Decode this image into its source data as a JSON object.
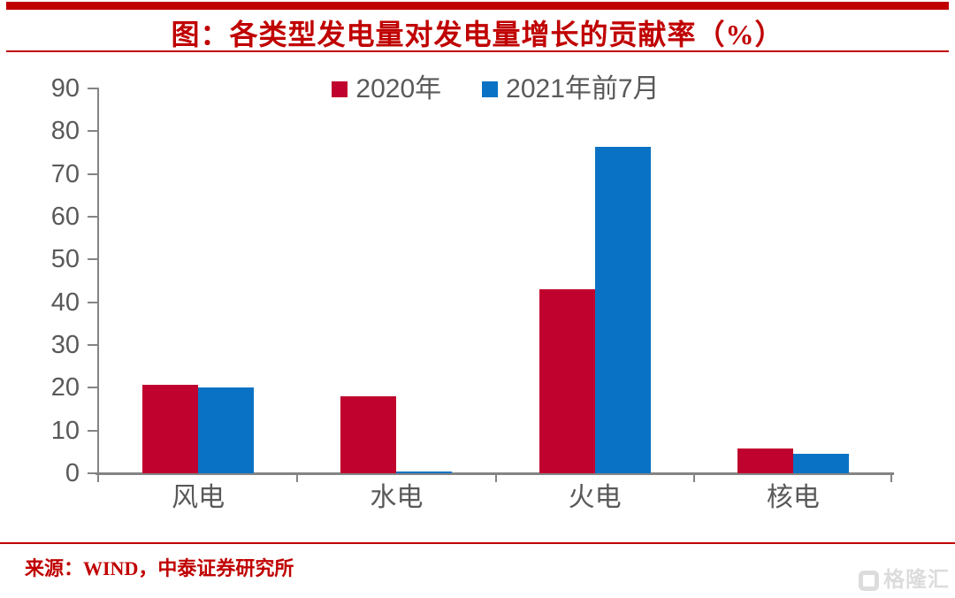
{
  "header": {
    "title": "图：各类型发电量对发电量增长的贡献率（%）"
  },
  "chart_data": {
    "type": "bar",
    "categories": [
      "风电",
      "水电",
      "火电",
      "核电"
    ],
    "series": [
      {
        "name": "2020年",
        "color": "#C0032E",
        "values": [
          20.7,
          17.9,
          43.0,
          5.8
        ]
      },
      {
        "name": "2021年前7月",
        "color": "#0A72C4",
        "values": [
          20.1,
          0.4,
          76.3,
          4.6
        ]
      }
    ],
    "title": "图：各类型发电量对发电量增长的贡献率（%）",
    "xlabel": "",
    "ylabel": "",
    "ylim": [
      0,
      90
    ],
    "yticks": [
      0,
      10,
      20,
      30,
      40,
      50,
      60,
      70,
      80,
      90
    ],
    "grid": false,
    "legend_position": "top-center"
  },
  "footer": {
    "source": "来源：WIND，中泰证券研究所"
  },
  "watermark": {
    "text": "格隆汇"
  },
  "colors": {
    "accent_red": "#C00000",
    "bar_red": "#C0032E",
    "bar_blue": "#0A72C4",
    "axis_gray": "#848484",
    "text_gray": "#595959",
    "watermark_gray": "#DCDCDC"
  }
}
